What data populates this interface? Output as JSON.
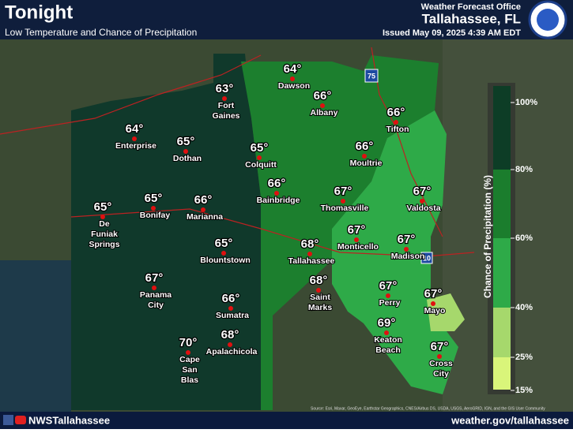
{
  "header": {
    "title": "Tonight",
    "subtitle": "Low Temperature and Chance of Precipitation",
    "office": "Weather Forecast Office",
    "location": "Tallahassee, FL",
    "issued": "Issued May 09, 2025 4:39 AM EDT"
  },
  "cities": [
    {
      "temp": "64°",
      "name": [
        "Dawson"
      ]
    },
    {
      "temp": "66°",
      "name": [
        "Albany"
      ]
    },
    {
      "temp": "63°",
      "name": [
        "Fort",
        "Gaines"
      ]
    },
    {
      "temp": "66°",
      "name": [
        "Tifton"
      ]
    },
    {
      "temp": "64°",
      "name": [
        "Enterprise"
      ]
    },
    {
      "temp": "65°",
      "name": [
        "Dothan"
      ]
    },
    {
      "temp": "65°",
      "name": [
        "Colquitt"
      ]
    },
    {
      "temp": "66°",
      "name": [
        "Moultrie"
      ]
    },
    {
      "temp": "66°",
      "name": [
        "Bainbridge"
      ]
    },
    {
      "temp": "67°",
      "name": [
        "Thomasville"
      ]
    },
    {
      "temp": "67°",
      "name": [
        "Valdosta"
      ]
    },
    {
      "temp": "65°",
      "name": [
        "Bonifay"
      ]
    },
    {
      "temp": "66°",
      "name": [
        "Marianna"
      ]
    },
    {
      "temp": "65°",
      "name": [
        "De",
        "Funiak",
        "Springs"
      ]
    },
    {
      "temp": "67°",
      "name": [
        "Monticello"
      ]
    },
    {
      "temp": "67°",
      "name": [
        "Madison"
      ]
    },
    {
      "temp": "68°",
      "name": [
        "Tallahassee"
      ]
    },
    {
      "temp": "65°",
      "name": [
        "Blountstown"
      ]
    },
    {
      "temp": "68°",
      "name": [
        "Saint",
        "Marks"
      ]
    },
    {
      "temp": "67°",
      "name": [
        "Panama",
        "City"
      ]
    },
    {
      "temp": "67°",
      "name": [
        "Perry"
      ]
    },
    {
      "temp": "67°",
      "name": [
        "Mayo"
      ]
    },
    {
      "temp": "66°",
      "name": [
        "Sumatra"
      ]
    },
    {
      "temp": "69°",
      "name": [
        "Keaton",
        "Beach"
      ]
    },
    {
      "temp": "68°",
      "name": [
        "Apalachicola"
      ]
    },
    {
      "temp": "70°",
      "name": [
        "Cape",
        "San",
        "Blas"
      ]
    },
    {
      "temp": "67°",
      "name": [
        "Cross",
        "City"
      ]
    }
  ],
  "legend": {
    "title": "Chance of Precipitation (%)",
    "labels": [
      "100%",
      "80%",
      "60%",
      "40%",
      "25%",
      "15%"
    ]
  },
  "highways": [
    "75",
    "10"
  ],
  "source": "Source: Esri, Maxar, GeoEye, Earthstar Geographics, CNES/Airbus DS, USDA, USGS, AeroGRID, IGN, and the GIS User Community",
  "footer": {
    "social": "NWSTallahassee",
    "url": "weather.gov/tallahassee"
  }
}
